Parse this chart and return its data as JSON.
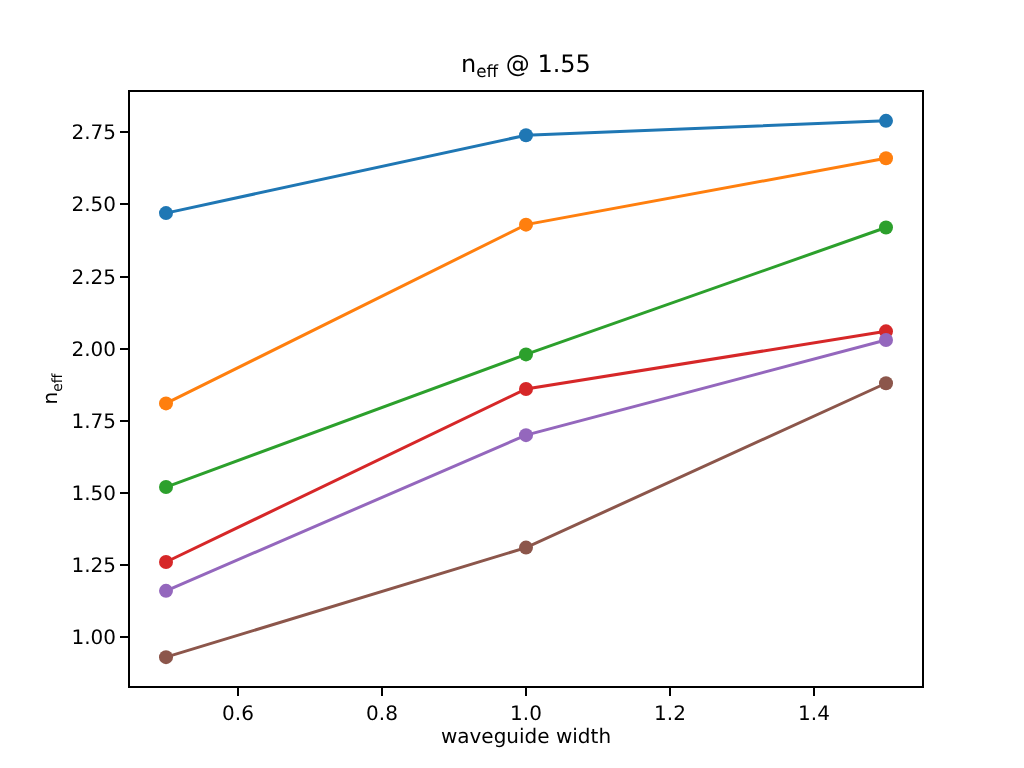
{
  "chart_data": {
    "type": "line",
    "title": "n$_{eff}$ @ 1.55",
    "xlabel": "waveguide width",
    "ylabel": "n$_{eff}$",
    "x": [
      0.5,
      1.0,
      1.5
    ],
    "series": [
      {
        "color": "#1f77b4",
        "values": [
          2.47,
          2.74,
          2.79
        ]
      },
      {
        "color": "#ff7f0e",
        "values": [
          1.81,
          2.43,
          2.66
        ]
      },
      {
        "color": "#2ca02c",
        "values": [
          1.52,
          1.98,
          2.42
        ]
      },
      {
        "color": "#d62728",
        "values": [
          1.26,
          1.86,
          2.06
        ]
      },
      {
        "color": "#9467bd",
        "values": [
          1.16,
          1.7,
          2.03
        ]
      },
      {
        "color": "#8c564b",
        "values": [
          0.93,
          1.31,
          1.88
        ]
      }
    ],
    "xlim": [
      0.45,
      1.55
    ],
    "xticks": [
      {
        "value": 0.6,
        "label": "0.6"
      },
      {
        "value": 0.8,
        "label": "0.8"
      },
      {
        "value": 1,
        "label": "1.0"
      },
      {
        "value": 1.2,
        "label": "1.2"
      },
      {
        "value": 1.4,
        "label": "1.4"
      }
    ],
    "ylim": [
      0.83,
      2.89
    ],
    "yticks": [
      {
        "value": 1,
        "label": "1.00"
      },
      {
        "value": 1.25,
        "label": "1.25"
      },
      {
        "value": 1.5,
        "label": "1.50"
      },
      {
        "value": 1.75,
        "label": "1.75"
      },
      {
        "value": 2,
        "label": "2.00"
      },
      {
        "value": 2.25,
        "label": "2.25"
      },
      {
        "value": 2.5,
        "label": "2.50"
      },
      {
        "value": 2.75,
        "label": "2.75"
      }
    ],
    "grid": false,
    "marker": "circle",
    "line_style": "solid"
  }
}
